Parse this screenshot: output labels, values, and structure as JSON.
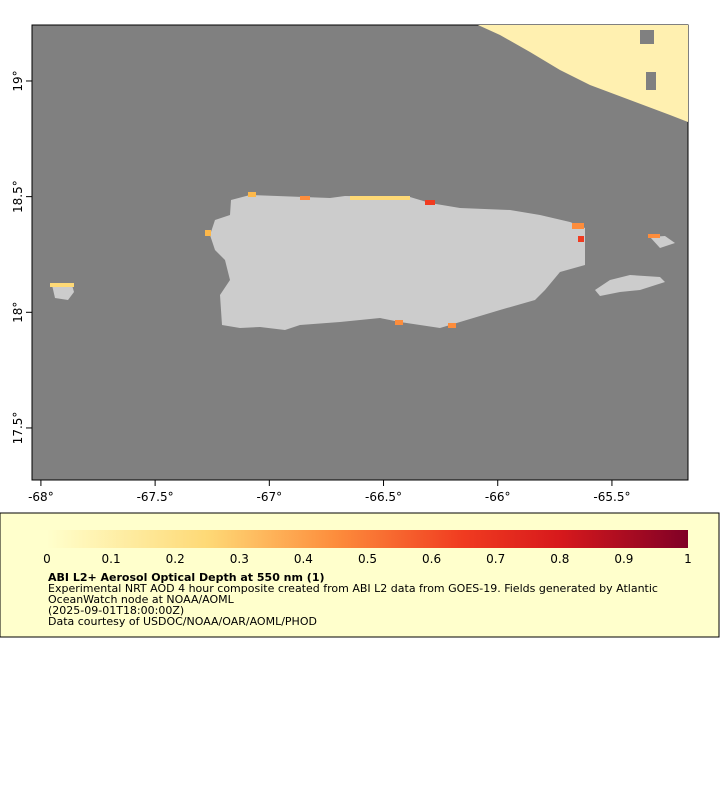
{
  "map": {
    "xlim": [
      -68.039,
      -65.167
    ],
    "xticks": [
      {
        "value": -68,
        "label": "-68°"
      },
      {
        "value": -67.5,
        "label": "-67.5°"
      },
      {
        "value": -67,
        "label": "-67°"
      },
      {
        "value": -66.5,
        "label": "-66.5°"
      },
      {
        "value": -66,
        "label": "-66°"
      },
      {
        "value": -65.5,
        "label": "-65.5°"
      }
    ],
    "ylim": [
      17.275,
      19.242
    ],
    "yticks": [
      {
        "value": 17.5,
        "label": "17.5°"
      },
      {
        "value": 18,
        "label": "18°"
      },
      {
        "value": 18.5,
        "label": "18.5°"
      },
      {
        "value": 19,
        "label": "19°"
      }
    ]
  },
  "colorbar": {
    "lim": [
      0,
      1
    ],
    "ticks": [
      0,
      0.1,
      0.2,
      0.3,
      0.4,
      0.5,
      0.6,
      0.7,
      0.8,
      0.9,
      1
    ]
  },
  "legend": {
    "title": "ABI L2+ Aerosol Optical Depth at 550 nm (1)",
    "lines": [
      "Experimental NRT AOD 4 hour composite created from ABI L2 data from GOES-19. Fields generated by Atlantic",
      "OceanWatch node at NOAA/AOML",
      "(2025-09-01T18:00:00Z)",
      "Data courtesy of USDOC/NOAA/OAR/AOML/PHOD"
    ]
  }
}
